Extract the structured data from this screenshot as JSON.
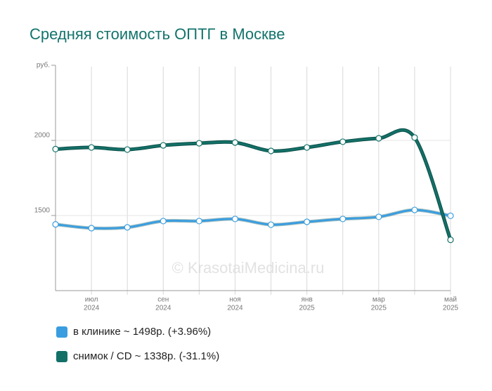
{
  "chart_data": {
    "type": "line",
    "title": "Средняя стоимость ОПТГ в Москве",
    "watermark": "© KrasotaiMedicina.ru",
    "categories": [
      null,
      {
        "month": "июл",
        "year": "2024"
      },
      null,
      {
        "month": "сен",
        "year": "2024"
      },
      null,
      {
        "month": "ноя",
        "year": "2024"
      },
      null,
      {
        "month": "янв",
        "year": "2025"
      },
      null,
      {
        "month": "мар",
        "year": "2025"
      },
      null,
      {
        "month": "май",
        "year": "2025"
      }
    ],
    "series": [
      {
        "name": "в клинике ~ 1498р. (+3.96%)",
        "color": "#3a9de0",
        "values": [
          1441,
          1416,
          1421,
          1463,
          1463,
          1477,
          1439,
          1458,
          1477,
          1491,
          1537,
          1498
        ]
      },
      {
        "name": "снимок / CD ~ 1338р. (-31.1%)",
        "color": "#137067",
        "values": [
          1942,
          1953,
          1939,
          1967,
          1981,
          1986,
          1930,
          1953,
          1991,
          2014,
          2019,
          1338
        ]
      }
    ],
    "ylim": [
      1000,
      2500
    ],
    "yticks": [
      1500,
      2000,
      {
        "value": 2500,
        "label": "руб."
      }
    ],
    "grid": true
  }
}
